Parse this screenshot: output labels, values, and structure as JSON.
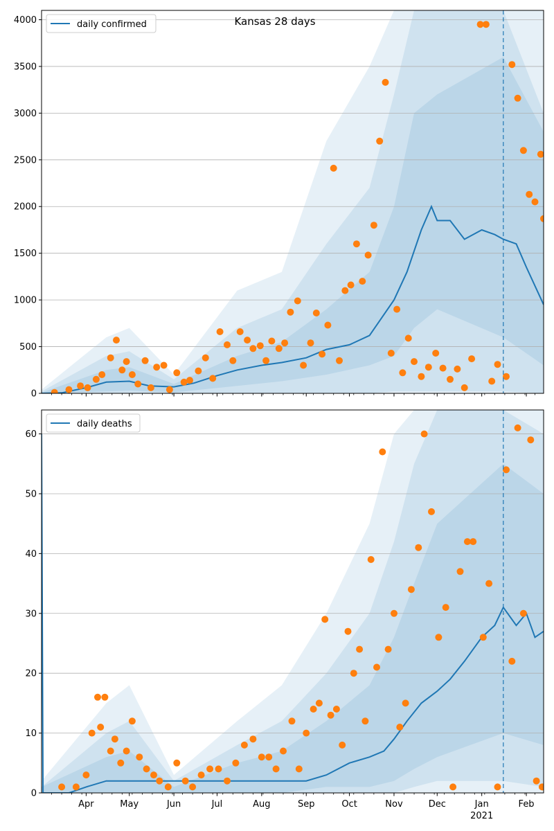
{
  "title": "Kansas 28 days",
  "colors": {
    "line": "#1f77b4",
    "points": "#ff7f0e",
    "band": "#1f77b4",
    "grid": "#b0b0b0",
    "axis": "#000000"
  },
  "x_axis": {
    "tick_labels": [
      "Apr",
      "May",
      "Jun",
      "Jul",
      "Aug",
      "Sep",
      "Oct",
      "Nov",
      "Dec",
      "Jan",
      "Feb"
    ],
    "year_label": "2021",
    "start_date": "2020-03-01",
    "end_date": "2021-02-13",
    "forecast_start_date": "2021-01-16"
  },
  "chart_data": [
    {
      "type": "line",
      "legend": "daily confirmed",
      "legend_position": "upper left",
      "grid": "horizontal",
      "ylim": [
        0,
        4100
      ],
      "yticks": [
        0,
        500,
        1000,
        1500,
        2000,
        2500,
        3000,
        3500,
        4000
      ],
      "line_series": {
        "name": "daily confirmed",
        "x": [
          "2020-03-01",
          "2020-03-15",
          "2020-04-01",
          "2020-04-15",
          "2020-05-01",
          "2020-05-15",
          "2020-06-01",
          "2020-06-15",
          "2020-07-01",
          "2020-07-15",
          "2020-08-01",
          "2020-08-15",
          "2020-09-01",
          "2020-09-15",
          "2020-10-01",
          "2020-10-15",
          "2020-11-01",
          "2020-11-10",
          "2020-11-20",
          "2020-11-27",
          "2020-12-01",
          "2020-12-10",
          "2020-12-20",
          "2021-01-01",
          "2021-01-10",
          "2021-01-16",
          "2021-01-25",
          "2021-02-01",
          "2021-02-13"
        ],
        "y": [
          0,
          5,
          60,
          120,
          130,
          80,
          70,
          110,
          190,
          250,
          300,
          330,
          380,
          470,
          520,
          620,
          1000,
          1300,
          1750,
          2000,
          1850,
          1850,
          1650,
          1750,
          1700,
          1650,
          1600,
          1350,
          950
        ]
      },
      "bands": [
        {
          "level": "outer",
          "x": [
            "2020-03-01",
            "2020-04-15",
            "2020-05-01",
            "2020-06-01",
            "2020-07-15",
            "2020-08-15",
            "2020-09-15",
            "2020-10-15",
            "2020-11-01",
            "2020-11-15",
            "2020-12-01",
            "2021-01-16",
            "2021-02-13"
          ],
          "lower": [
            0,
            0,
            0,
            0,
            0,
            0,
            0,
            0,
            0,
            0,
            0,
            0,
            0
          ],
          "upper": [
            40,
            600,
            700,
            200,
            1100,
            1300,
            2700,
            3500,
            4100,
            4100,
            4100,
            4100,
            4100
          ]
        },
        {
          "level": "middle",
          "x": [
            "2020-03-01",
            "2020-04-15",
            "2020-05-01",
            "2020-06-01",
            "2020-07-15",
            "2020-08-15",
            "2020-09-15",
            "2020-10-15",
            "2020-11-01",
            "2020-11-15",
            "2020-12-01",
            "2021-01-16",
            "2021-02-13"
          ],
          "lower": [
            0,
            0,
            0,
            0,
            0,
            0,
            0,
            0,
            20,
            20,
            20,
            20,
            0
          ],
          "upper": [
            20,
            400,
            450,
            150,
            700,
            900,
            1600,
            2200,
            3200,
            4100,
            4100,
            4100,
            3000
          ]
        },
        {
          "level": "inner",
          "x": [
            "2020-03-01",
            "2020-04-15",
            "2020-05-01",
            "2020-06-01",
            "2020-07-15",
            "2020-08-15",
            "2020-09-15",
            "2020-10-15",
            "2020-11-01",
            "2020-11-15",
            "2020-12-01",
            "2021-01-16",
            "2021-02-13"
          ],
          "lower": [
            0,
            20,
            30,
            10,
            80,
            130,
            200,
            300,
            400,
            700,
            900,
            600,
            300
          ],
          "upper": [
            10,
            250,
            280,
            100,
            400,
            550,
            900,
            1300,
            2000,
            3000,
            3200,
            3600,
            2800
          ]
        }
      ],
      "scatter_series": {
        "name": "observed",
        "x": [
          "2020-03-10",
          "2020-03-20",
          "2020-03-28",
          "2020-04-02",
          "2020-04-08",
          "2020-04-12",
          "2020-04-18",
          "2020-04-22",
          "2020-04-26",
          "2020-04-29",
          "2020-05-03",
          "2020-05-07",
          "2020-05-12",
          "2020-05-16",
          "2020-05-20",
          "2020-05-25",
          "2020-05-29",
          "2020-06-03",
          "2020-06-08",
          "2020-06-12",
          "2020-06-18",
          "2020-06-23",
          "2020-06-28",
          "2020-07-03",
          "2020-07-08",
          "2020-07-12",
          "2020-07-17",
          "2020-07-22",
          "2020-07-26",
          "2020-07-31",
          "2020-08-04",
          "2020-08-08",
          "2020-08-13",
          "2020-08-17",
          "2020-08-21",
          "2020-08-26",
          "2020-08-30",
          "2020-09-04",
          "2020-09-08",
          "2020-09-12",
          "2020-09-16",
          "2020-09-20",
          "2020-09-24",
          "2020-09-28",
          "2020-10-02",
          "2020-10-06",
          "2020-10-10",
          "2020-10-14",
          "2020-10-18",
          "2020-10-22",
          "2020-10-26",
          "2020-10-30",
          "2020-11-03",
          "2020-11-07",
          "2020-11-11",
          "2020-11-15",
          "2020-11-20",
          "2020-11-25",
          "2020-11-30",
          "2020-12-05",
          "2020-12-10",
          "2020-12-15",
          "2020-12-20",
          "2020-12-25",
          "2020-12-31",
          "2021-01-04",
          "2021-01-08",
          "2021-01-12",
          "2021-01-18",
          "2021-01-22",
          "2021-01-26",
          "2021-01-30",
          "2021-02-03",
          "2021-02-07",
          "2021-02-11",
          "2021-02-13"
        ],
        "y": [
          10,
          40,
          80,
          60,
          150,
          200,
          380,
          570,
          250,
          340,
          200,
          100,
          350,
          60,
          280,
          300,
          40,
          220,
          120,
          140,
          240,
          380,
          160,
          660,
          520,
          350,
          660,
          570,
          480,
          510,
          350,
          560,
          480,
          540,
          870,
          990,
          300,
          540,
          860,
          420,
          730,
          2410,
          350,
          1100,
          1160,
          1600,
          1200,
          1480,
          1800,
          2700,
          3330,
          430,
          900,
          220,
          590,
          340,
          180,
          280,
          430,
          270,
          150,
          260,
          60,
          370,
          3950,
          3950,
          130,
          310,
          180,
          3520,
          3160,
          2600,
          2130,
          2050,
          2560,
          1870
        ]
      }
    },
    {
      "type": "line",
      "legend": "daily deaths",
      "legend_position": "upper left",
      "grid": "horizontal",
      "ylim": [
        0,
        64
      ],
      "yticks": [
        0,
        10,
        20,
        30,
        40,
        50,
        60
      ],
      "line_series": {
        "name": "daily deaths",
        "x": [
          "2020-03-01",
          "2020-03-02",
          "2020-03-20",
          "2020-04-01",
          "2020-04-15",
          "2020-05-01",
          "2020-06-01",
          "2020-07-01",
          "2020-08-01",
          "2020-09-01",
          "2020-09-15",
          "2020-10-01",
          "2020-10-15",
          "2020-10-25",
          "2020-11-01",
          "2020-11-10",
          "2020-11-20",
          "2020-12-01",
          "2020-12-10",
          "2020-12-20",
          "2021-01-01",
          "2021-01-10",
          "2021-01-16",
          "2021-01-25",
          "2021-02-01",
          "2021-02-07",
          "2021-02-13"
        ],
        "y": [
          60,
          0,
          0,
          1,
          2,
          2,
          2,
          2,
          2,
          2,
          3,
          5,
          6,
          7,
          9,
          12,
          15,
          17,
          19,
          22,
          26,
          28,
          31,
          28,
          30,
          26,
          27
        ]
      },
      "bands": [
        {
          "level": "outer",
          "x": [
            "2020-03-01",
            "2020-04-15",
            "2020-05-01",
            "2020-06-01",
            "2020-07-15",
            "2020-08-15",
            "2020-09-15",
            "2020-10-15",
            "2020-11-01",
            "2020-11-15",
            "2020-12-01",
            "2021-01-16",
            "2021-02-13"
          ],
          "lower": [
            0,
            0,
            0,
            0,
            0,
            0,
            0,
            0,
            0,
            0,
            0,
            0,
            0
          ],
          "upper": [
            2,
            15,
            18,
            3,
            12,
            18,
            30,
            45,
            60,
            64,
            64,
            64,
            64
          ]
        },
        {
          "level": "middle",
          "x": [
            "2020-03-01",
            "2020-04-15",
            "2020-05-01",
            "2020-06-01",
            "2020-07-15",
            "2020-08-15",
            "2020-09-15",
            "2020-10-15",
            "2020-11-01",
            "2020-11-15",
            "2020-12-01",
            "2021-01-16",
            "2021-02-13"
          ],
          "lower": [
            0,
            0,
            0,
            0,
            0,
            0,
            0,
            0,
            0,
            1,
            2,
            2,
            1
          ],
          "upper": [
            1,
            10,
            12,
            2,
            8,
            12,
            20,
            30,
            42,
            55,
            64,
            64,
            60
          ]
        },
        {
          "level": "inner",
          "x": [
            "2020-03-01",
            "2020-04-15",
            "2020-05-01",
            "2020-06-01",
            "2020-07-15",
            "2020-08-15",
            "2020-09-15",
            "2020-10-15",
            "2020-11-01",
            "2020-11-15",
            "2020-12-01",
            "2021-01-16",
            "2021-02-13"
          ],
          "lower": [
            0,
            0,
            0,
            0,
            0,
            0,
            1,
            1,
            2,
            4,
            6,
            10,
            8
          ],
          "upper": [
            1,
            6,
            7,
            1,
            5,
            7,
            12,
            18,
            26,
            35,
            45,
            55,
            50
          ]
        }
      ],
      "scatter_series": {
        "name": "observed",
        "x": [
          "2020-03-15",
          "2020-03-25",
          "2020-04-01",
          "2020-04-05",
          "2020-04-09",
          "2020-04-11",
          "2020-04-14",
          "2020-04-18",
          "2020-04-21",
          "2020-04-25",
          "2020-04-29",
          "2020-05-03",
          "2020-05-08",
          "2020-05-13",
          "2020-05-18",
          "2020-05-22",
          "2020-05-28",
          "2020-06-03",
          "2020-06-09",
          "2020-06-14",
          "2020-06-20",
          "2020-06-26",
          "2020-07-02",
          "2020-07-08",
          "2020-07-14",
          "2020-07-20",
          "2020-07-26",
          "2020-08-01",
          "2020-08-06",
          "2020-08-11",
          "2020-08-16",
          "2020-08-22",
          "2020-08-27",
          "2020-09-01",
          "2020-09-06",
          "2020-09-10",
          "2020-09-14",
          "2020-09-18",
          "2020-09-22",
          "2020-09-26",
          "2020-09-30",
          "2020-10-04",
          "2020-10-08",
          "2020-10-12",
          "2020-10-16",
          "2020-10-20",
          "2020-10-24",
          "2020-10-28",
          "2020-11-01",
          "2020-11-05",
          "2020-11-09",
          "2020-11-13",
          "2020-11-18",
          "2020-11-22",
          "2020-11-27",
          "2020-12-02",
          "2020-12-07",
          "2020-12-12",
          "2020-12-17",
          "2020-12-22",
          "2020-12-26",
          "2021-01-02",
          "2021-01-06",
          "2021-01-12",
          "2021-01-18",
          "2021-01-22",
          "2021-01-26",
          "2021-01-30",
          "2021-02-04",
          "2021-02-08",
          "2021-02-12"
        ],
        "y": [
          1,
          1,
          3,
          10,
          16,
          11,
          16,
          7,
          9,
          5,
          7,
          12,
          6,
          4,
          3,
          2,
          1,
          5,
          2,
          1,
          3,
          4,
          4,
          2,
          5,
          8,
          9,
          6,
          6,
          4,
          7,
          12,
          4,
          10,
          14,
          15,
          29,
          13,
          14,
          8,
          27,
          20,
          24,
          12,
          39,
          21,
          57,
          24,
          30,
          11,
          15,
          34,
          41,
          60,
          47,
          26,
          31,
          1,
          37,
          42,
          42,
          26,
          35,
          1,
          54,
          22,
          61,
          30,
          59,
          2,
          1
        ]
      }
    }
  ]
}
